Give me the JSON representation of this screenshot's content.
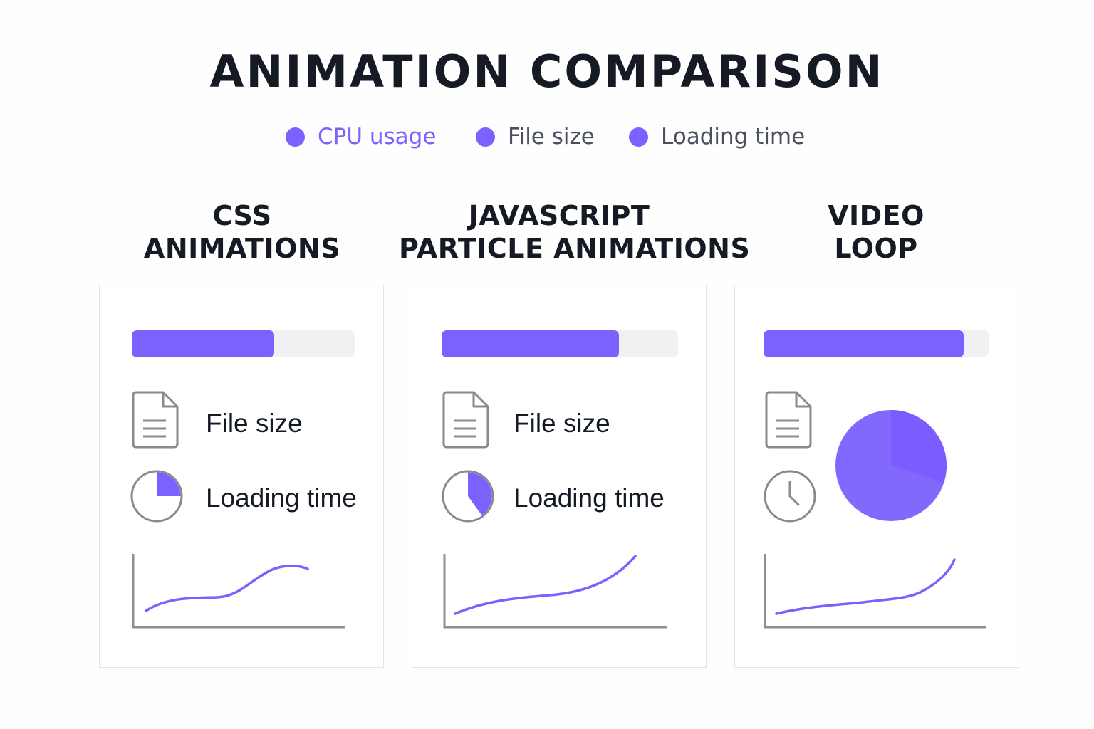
{
  "title": "ANIMATION COMPARISON",
  "colors": {
    "accent": "#7b61ff",
    "accent_dark": "#6f55ff",
    "track": "#f1f1f4",
    "icon_stroke": "#8a8a8e",
    "axis": "#8f8f93"
  },
  "legend": [
    {
      "label": "CPU usage",
      "color": "#7b61ff"
    },
    {
      "label": "File size",
      "color": "#7b61ff"
    },
    {
      "label": "Loading time",
      "color": "#7b61ff"
    }
  ],
  "columns": [
    {
      "title_line1": "CSS",
      "title_line2": "ANIMATIONS",
      "cpu_usage_fraction": 0.64,
      "file_icon": "document-icon",
      "file_label": "File size",
      "loading_icon": "pie-timer-icon",
      "loading_fraction": 0.25,
      "loading_label": "Loading time",
      "trend_icon": "line-chart-icon"
    },
    {
      "title_line1": "JAVASCRIPT",
      "title_line2": "PARTICLE ANIMATIONS",
      "cpu_usage_fraction": 0.75,
      "file_icon": "document-icon",
      "file_label": "File size",
      "loading_icon": "pie-timer-icon",
      "loading_fraction": 0.4,
      "loading_label": "Loading time",
      "trend_icon": "line-chart-icon"
    },
    {
      "title_line1": "VIDEO",
      "title_line2": "LOOP",
      "cpu_usage_fraction": 0.89,
      "file_icon": "document-icon",
      "loading_icon": "clock-icon",
      "size_pie_icon": "pie-chart-icon",
      "size_pie_fraction": 0.3,
      "trend_icon": "line-chart-icon"
    }
  ]
}
